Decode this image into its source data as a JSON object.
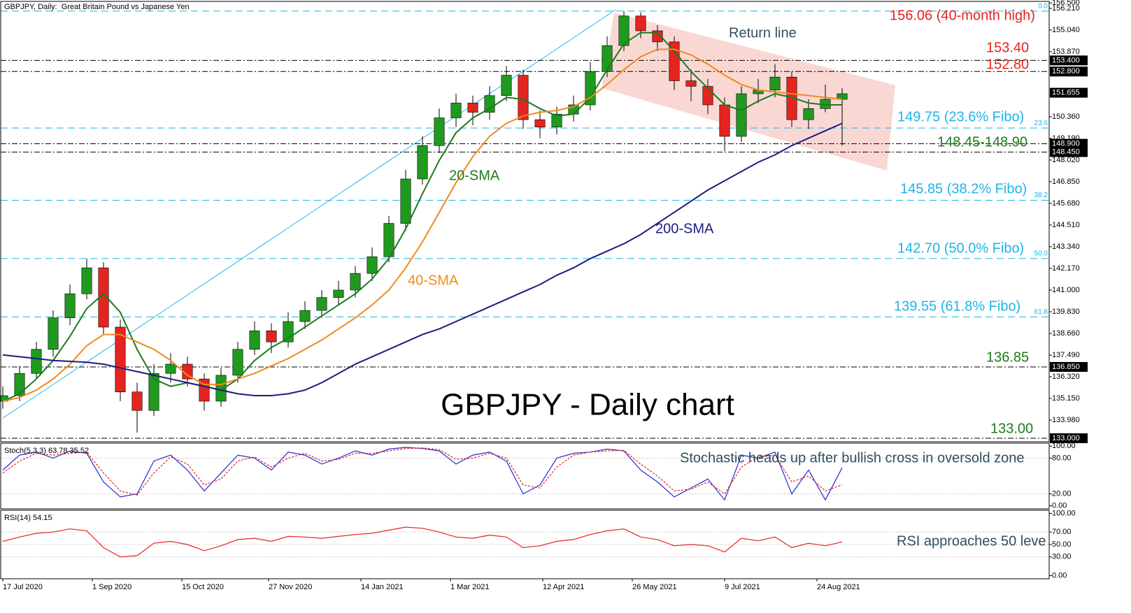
{
  "chart_data": [
    {
      "type": "candlestick",
      "title": "GBPJPY, Daily:  Great Britain Pound vs Japanese Yen",
      "watermark": "GBPJPY - Daily chart",
      "x": [
        0,
        6,
        12,
        18,
        24,
        30,
        36,
        42,
        48,
        54,
        60,
        66,
        72,
        78,
        84,
        90,
        96,
        102,
        108,
        114,
        120,
        126,
        132,
        138,
        144,
        150,
        156,
        162,
        168,
        174,
        180,
        186,
        192,
        198,
        204,
        210,
        216,
        222,
        228,
        234,
        240,
        246,
        252,
        258,
        264,
        270,
        276,
        282,
        288,
        294,
        300
      ],
      "open": [
        135.0,
        135.3,
        136.5,
        137.8,
        139.5,
        140.8,
        142.2,
        139.0,
        135.5,
        134.5,
        136.5,
        137.0,
        136.2,
        135.0,
        136.4,
        137.8,
        138.8,
        138.2,
        139.3,
        139.9,
        140.6,
        141.0,
        141.9,
        142.8,
        144.6,
        147.0,
        148.8,
        150.3,
        151.1,
        150.6,
        151.5,
        152.6,
        150.2,
        149.8,
        150.5,
        151.0,
        152.8,
        154.2,
        155.8,
        155.0,
        154.4,
        152.3,
        152.0,
        151.0,
        149.3,
        151.6,
        151.8,
        152.5,
        150.2,
        150.8,
        151.3
      ],
      "high": [
        135.8,
        136.9,
        138.2,
        139.9,
        141.3,
        142.7,
        142.5,
        139.4,
        136.0,
        137.0,
        137.6,
        137.4,
        136.5,
        136.8,
        138.2,
        139.3,
        139.2,
        139.8,
        140.4,
        141.0,
        141.5,
        142.3,
        143.3,
        145.0,
        147.5,
        149.3,
        150.8,
        151.6,
        151.5,
        152.0,
        153.1,
        152.9,
        150.7,
        150.9,
        151.5,
        153.3,
        154.7,
        156.06,
        156.0,
        155.3,
        154.7,
        152.9,
        152.4,
        151.4,
        152.0,
        152.4,
        153.2,
        152.8,
        151.3,
        152.1,
        151.9
      ],
      "low": [
        134.6,
        135.0,
        136.2,
        137.4,
        139.1,
        140.5,
        138.6,
        135.0,
        133.3,
        134.2,
        136.0,
        135.8,
        134.5,
        134.7,
        136.0,
        137.5,
        137.6,
        137.9,
        138.9,
        139.5,
        140.2,
        140.6,
        141.5,
        142.5,
        144.2,
        146.7,
        148.4,
        149.8,
        149.9,
        150.2,
        151.2,
        149.7,
        149.2,
        149.4,
        150.1,
        150.7,
        152.5,
        153.9,
        154.6,
        153.9,
        151.8,
        151.2,
        150.5,
        148.5,
        149.0,
        151.1,
        151.4,
        149.8,
        149.7,
        150.6,
        148.8
      ],
      "close": [
        135.3,
        136.5,
        137.8,
        139.5,
        140.8,
        142.2,
        139.0,
        135.5,
        134.5,
        136.5,
        137.0,
        136.2,
        135.0,
        136.4,
        137.8,
        138.8,
        138.2,
        139.3,
        139.9,
        140.6,
        141.0,
        141.9,
        142.8,
        144.6,
        147.0,
        148.8,
        150.3,
        151.1,
        150.6,
        151.5,
        152.6,
        150.2,
        149.8,
        150.5,
        151.0,
        152.8,
        154.2,
        155.8,
        155.0,
        154.4,
        152.3,
        152.0,
        151.0,
        149.3,
        151.6,
        151.8,
        152.5,
        150.2,
        150.8,
        151.3,
        151.6
      ],
      "up_color": "#1f9a1f",
      "down_color": "#e52420",
      "series": [
        {
          "name": "20-SMA",
          "color": "#1e7b1e",
          "values": [
            135.0,
            135.4,
            136.2,
            137.2,
            138.5,
            140.0,
            140.8,
            139.8,
            137.8,
            136.2,
            135.8,
            136.0,
            135.8,
            135.6,
            136.2,
            137.2,
            137.9,
            138.4,
            139.0,
            139.6,
            140.2,
            140.8,
            141.6,
            142.7,
            144.3,
            146.2,
            148.0,
            149.5,
            150.3,
            150.8,
            151.4,
            151.3,
            150.8,
            150.4,
            150.5,
            151.4,
            152.9,
            154.3,
            154.9,
            154.9,
            153.9,
            152.8,
            151.9,
            151.0,
            150.7,
            151.2,
            151.6,
            151.4,
            151.1,
            151.0,
            151.0
          ]
        },
        {
          "name": "40-SMA",
          "color": "#f08a1c",
          "values": [
            135.0,
            135.2,
            135.6,
            136.2,
            137.0,
            138.0,
            138.6,
            138.6,
            138.2,
            137.8,
            137.2,
            136.4,
            135.9,
            135.9,
            136.2,
            136.5,
            136.9,
            137.3,
            137.8,
            138.3,
            138.9,
            139.5,
            140.2,
            141.0,
            142.2,
            143.6,
            145.2,
            146.8,
            148.2,
            149.3,
            150.0,
            150.4,
            150.6,
            150.7,
            150.9,
            151.4,
            152.1,
            152.9,
            153.6,
            154.0,
            154.0,
            153.7,
            153.2,
            152.6,
            152.1,
            151.8,
            151.7,
            151.6,
            151.5,
            151.4,
            151.3
          ]
        },
        {
          "name": "200-SMA",
          "color": "#1c1c80",
          "values": [
            137.5,
            137.4,
            137.3,
            137.2,
            137.15,
            137.1,
            137.0,
            136.8,
            136.6,
            136.4,
            136.2,
            136.0,
            135.8,
            135.6,
            135.4,
            135.3,
            135.3,
            135.4,
            135.6,
            136.0,
            136.5,
            137.0,
            137.4,
            137.8,
            138.2,
            138.6,
            138.9,
            139.3,
            139.7,
            140.1,
            140.5,
            140.9,
            141.3,
            141.8,
            142.2,
            142.7,
            143.1,
            143.5,
            144.0,
            144.6,
            145.2,
            145.8,
            146.4,
            146.9,
            147.4,
            147.9,
            148.3,
            148.8,
            149.2,
            149.6,
            150.0
          ]
        }
      ],
      "xlim": [
        0,
        374
      ],
      "xticks": [
        {
          "value": 0,
          "label": "17 Jul 2020"
        },
        {
          "value": 32,
          "label": "1 Sep 2020"
        },
        {
          "value": 64,
          "label": "15 Oct 2020"
        },
        {
          "value": 95,
          "label": "27 Nov 2020"
        },
        {
          "value": 128,
          "label": "14 Jan 2021"
        },
        {
          "value": 160,
          "label": "1 Mar 2021"
        },
        {
          "value": 193,
          "label": "12 Apr 2021"
        },
        {
          "value": 225,
          "label": "26 May 2021"
        },
        {
          "value": 258,
          "label": "9 Jul 2021"
        },
        {
          "value": 291,
          "label": "24 Aug 2021"
        }
      ],
      "ylim": [
        132.81,
        156.51
      ],
      "yticks": [
        {
          "value": 156.5,
          "label": "156.500"
        },
        {
          "value": 156.21,
          "label": "156.210"
        },
        {
          "value": 155.04,
          "label": "155.040"
        },
        {
          "value": 153.87,
          "label": "153.870"
        },
        {
          "value": 150.36,
          "label": "150.360"
        },
        {
          "value": 149.19,
          "label": "149.190"
        },
        {
          "value": 148.02,
          "label": "148.020"
        },
        {
          "value": 146.85,
          "label": "146.850"
        },
        {
          "value": 145.68,
          "label": "145.680"
        },
        {
          "value": 144.51,
          "label": "144.510"
        },
        {
          "value": 143.34,
          "label": "143.340"
        },
        {
          "value": 142.17,
          "label": "142.170"
        },
        {
          "value": 141,
          "label": "141.000"
        },
        {
          "value": 139.83,
          "label": "139.830"
        },
        {
          "value": 138.66,
          "label": "138.660"
        },
        {
          "value": 137.49,
          "label": "137.490"
        },
        {
          "value": 136.32,
          "label": "136.320"
        },
        {
          "value": 135.15,
          "label": "135.150"
        },
        {
          "value": 133.98,
          "label": "133.980"
        }
      ],
      "price_markers": [
        {
          "value": 153.4,
          "label": "153.400"
        },
        {
          "value": 152.8,
          "label": "152.800"
        },
        {
          "value": 151.655,
          "label": "151.655"
        },
        {
          "value": 148.9,
          "label": "148.900"
        },
        {
          "value": 148.45,
          "label": "148.450"
        },
        {
          "value": 136.85,
          "label": "136.850"
        },
        {
          "value": 133,
          "label": "133.000"
        }
      ],
      "fibo_levels": [
        {
          "value": 156.06,
          "label": "0.0"
        },
        {
          "value": 149.75,
          "label": "23.6"
        },
        {
          "value": 145.85,
          "label": "38.2"
        },
        {
          "value": 142.7,
          "label": "50.0"
        },
        {
          "value": 139.55,
          "label": "61.8"
        }
      ],
      "fibo_color": "#1fb4e6",
      "support_levels": [
        153.4,
        152.8,
        148.9,
        148.45,
        136.85,
        133
      ],
      "annotations": [
        "156.06 (40-month high)",
        "153.40",
        "152.80",
        "149.75 (23.6% Fibo)",
        "148.45-148.90",
        "145.85 (38.2% Fibo)",
        "142.70 (50.0% Fibo)",
        "139.55 (61.8% Fibo)",
        "136.85",
        "133.00",
        "Return line"
      ]
    },
    {
      "type": "line",
      "title": "Stoch(5,3,3) 63.78 35.52",
      "annotation": "Stochastic heads up after bullish cross in oversold zone",
      "x": [
        0,
        6,
        12,
        18,
        24,
        30,
        36,
        42,
        48,
        54,
        60,
        66,
        72,
        78,
        84,
        90,
        96,
        102,
        108,
        114,
        120,
        126,
        132,
        138,
        144,
        150,
        156,
        162,
        168,
        174,
        180,
        186,
        192,
        198,
        204,
        210,
        216,
        222,
        228,
        234,
        240,
        246,
        252,
        258,
        264,
        270,
        276,
        282,
        288,
        294,
        300
      ],
      "series": [
        {
          "color": "#2a2ad0",
          "values": [
            60,
            85,
            90,
            80,
            92,
            88,
            40,
            15,
            20,
            75,
            85,
            60,
            25,
            55,
            85,
            80,
            60,
            90,
            85,
            70,
            80,
            92,
            85,
            95,
            98,
            96,
            92,
            70,
            85,
            90,
            75,
            20,
            35,
            80,
            88,
            90,
            95,
            92,
            60,
            40,
            15,
            30,
            45,
            10,
            85,
            80,
            90,
            20,
            60,
            10,
            63.78
          ]
        },
        {
          "color": "#e52420",
          "dash": true,
          "values": [
            55,
            75,
            88,
            85,
            88,
            90,
            55,
            25,
            18,
            55,
            82,
            70,
            35,
            45,
            75,
            82,
            65,
            80,
            88,
            75,
            78,
            88,
            88,
            92,
            96,
            97,
            94,
            78,
            80,
            88,
            80,
            35,
            30,
            65,
            85,
            90,
            92,
            93,
            70,
            50,
            25,
            28,
            40,
            20,
            65,
            82,
            85,
            40,
            50,
            25,
            35.52
          ]
        }
      ],
      "xlim": [
        0,
        374
      ],
      "ylim": [
        -5,
        105
      ],
      "yticks": [
        {
          "value": 100,
          "label": "100.00"
        },
        {
          "value": 80,
          "label": "80.00"
        },
        {
          "value": 20,
          "label": "20.00"
        },
        {
          "value": 0,
          "label": "0.00"
        }
      ]
    },
    {
      "type": "line",
      "title": "RSI(14) 54.15",
      "annotation": "RSI approaches 50 leve",
      "x": [
        0,
        6,
        12,
        18,
        24,
        30,
        36,
        42,
        48,
        54,
        60,
        66,
        72,
        78,
        84,
        90,
        96,
        102,
        108,
        114,
        120,
        126,
        132,
        138,
        144,
        150,
        156,
        162,
        168,
        174,
        180,
        186,
        192,
        198,
        204,
        210,
        216,
        222,
        228,
        234,
        240,
        246,
        252,
        258,
        264,
        270,
        276,
        282,
        288,
        294,
        300
      ],
      "series": [
        {
          "color": "#e52420",
          "values": [
            55,
            62,
            68,
            70,
            75,
            72,
            45,
            30,
            32,
            52,
            55,
            50,
            40,
            48,
            58,
            60,
            55,
            63,
            62,
            60,
            63,
            66,
            68,
            73,
            78,
            76,
            70,
            62,
            60,
            65,
            62,
            45,
            48,
            55,
            58,
            66,
            72,
            75,
            62,
            58,
            48,
            50,
            48,
            38,
            60,
            56,
            62,
            45,
            52,
            48,
            54.15
          ]
        }
      ],
      "xlim": [
        0,
        374
      ],
      "ylim": [
        -5,
        105
      ],
      "yticks": [
        {
          "value": 100,
          "label": "100.00"
        },
        {
          "value": 70,
          "label": "70.00"
        },
        {
          "value": 50,
          "label": "50.00"
        },
        {
          "value": 30,
          "label": "30.00"
        },
        {
          "value": 0,
          "label": "0.00"
        }
      ]
    }
  ]
}
